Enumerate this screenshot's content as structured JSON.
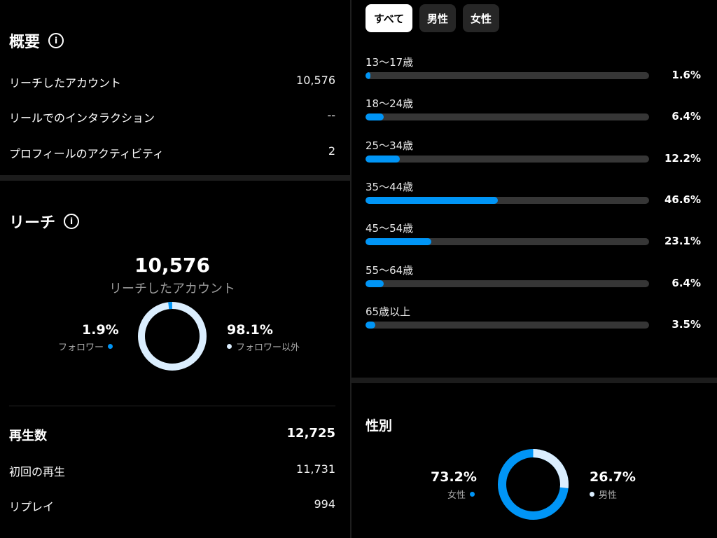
{
  "overview": {
    "title": "概要",
    "rows": [
      {
        "label": "リーチしたアカウント",
        "value": "10,576"
      },
      {
        "label": "リールでのインタラクション",
        "value": "--"
      },
      {
        "label": "プロフィールのアクティビティ",
        "value": "2"
      }
    ]
  },
  "reach": {
    "title": "リーチ",
    "total": "10,576",
    "subtitle": "リーチしたアカウント",
    "followers": {
      "pct_label": "1.9%",
      "label": "フォロワー",
      "value": 1.9
    },
    "non_followers": {
      "pct_label": "98.1%",
      "label": "フォロワー以外",
      "value": 98.1
    }
  },
  "plays": {
    "title": "再生数",
    "total": "12,725",
    "rows": [
      {
        "label": "初回の再生",
        "value": "11,731"
      },
      {
        "label": "リプレイ",
        "value": "994"
      }
    ]
  },
  "filters": [
    {
      "label": "すべて",
      "active": true
    },
    {
      "label": "男性",
      "active": false
    },
    {
      "label": "女性",
      "active": false
    }
  ],
  "age_groups": [
    {
      "label": "13～17歳",
      "pct": "1.6%",
      "value": 1.6
    },
    {
      "label": "18～24歳",
      "pct": "6.4%",
      "value": 6.4
    },
    {
      "label": "25～34歳",
      "pct": "12.2%",
      "value": 12.2
    },
    {
      "label": "35～44歳",
      "pct": "46.6%",
      "value": 46.6
    },
    {
      "label": "45～54歳",
      "pct": "23.1%",
      "value": 23.1
    },
    {
      "label": "55～64歳",
      "pct": "6.4%",
      "value": 6.4
    },
    {
      "label": "65歳以上",
      "pct": "3.5%",
      "value": 3.5
    }
  ],
  "gender": {
    "title": "性別",
    "female": {
      "pct_label": "73.2%",
      "label": "女性",
      "value": 73.2
    },
    "male": {
      "pct_label": "26.7%",
      "label": "男性",
      "value": 26.7
    }
  },
  "colors": {
    "accent": "#0095f6",
    "ring_light": "#dbeefe",
    "track": "#363636"
  },
  "icons": {
    "info": "info-icon"
  }
}
